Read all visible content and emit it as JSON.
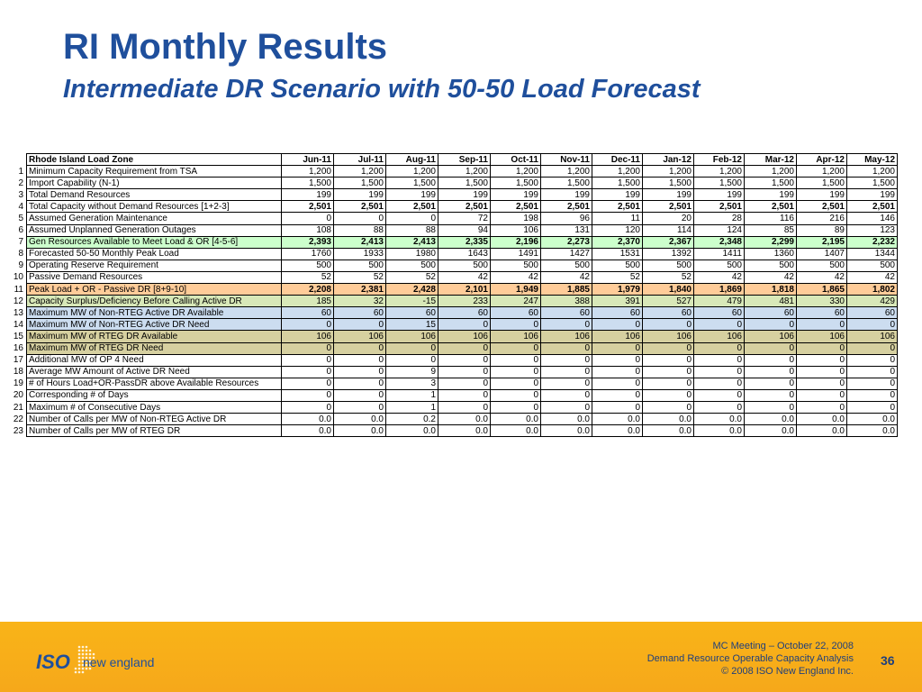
{
  "title": "RI Monthly Results",
  "subtitle": "Intermediate DR Scenario with 50-50 Load Forecast",
  "table": {
    "header_label": "Rhode Island Load Zone",
    "months": [
      "Jun-11",
      "Jul-11",
      "Aug-11",
      "Sep-11",
      "Oct-11",
      "Nov-11",
      "Dec-11",
      "Jan-12",
      "Feb-12",
      "Mar-12",
      "Apr-12",
      "May-12"
    ],
    "rows": [
      {
        "num": "1",
        "label": "Minimum Capacity Requirement from TSA",
        "bg": "",
        "bold": false,
        "values": [
          "1,200",
          "1,200",
          "1,200",
          "1,200",
          "1,200",
          "1,200",
          "1,200",
          "1,200",
          "1,200",
          "1,200",
          "1,200",
          "1,200"
        ]
      },
      {
        "num": "2",
        "label": "Import Capability (N-1)",
        "bg": "",
        "bold": false,
        "values": [
          "1,500",
          "1,500",
          "1,500",
          "1,500",
          "1,500",
          "1,500",
          "1,500",
          "1,500",
          "1,500",
          "1,500",
          "1,500",
          "1,500"
        ]
      },
      {
        "num": "3",
        "label": "Total Demand Resources",
        "bg": "",
        "bold": false,
        "values": [
          "199",
          "199",
          "199",
          "199",
          "199",
          "199",
          "199",
          "199",
          "199",
          "199",
          "199",
          "199"
        ]
      },
      {
        "num": "4",
        "label": "Total Capacity without Demand Resources [1+2-3]",
        "bg": "",
        "bold": true,
        "values": [
          "2,501",
          "2,501",
          "2,501",
          "2,501",
          "2,501",
          "2,501",
          "2,501",
          "2,501",
          "2,501",
          "2,501",
          "2,501",
          "2,501"
        ]
      },
      {
        "num": "5",
        "label": "Assumed Generation Maintenance",
        "bg": "",
        "bold": false,
        "values": [
          "0",
          "0",
          "0",
          "72",
          "198",
          "96",
          "11",
          "20",
          "28",
          "116",
          "216",
          "146"
        ]
      },
      {
        "num": "6",
        "label": "Assumed Unplanned Generation Outages",
        "bg": "",
        "bold": false,
        "values": [
          "108",
          "88",
          "88",
          "94",
          "106",
          "131",
          "120",
          "114",
          "124",
          "85",
          "89",
          "123"
        ]
      },
      {
        "num": "7",
        "label": "Gen Resources Available to Meet Load & OR [4-5-6]",
        "bg": "#ccffcc",
        "bold": true,
        "values": [
          "2,393",
          "2,413",
          "2,413",
          "2,335",
          "2,196",
          "2,273",
          "2,370",
          "2,367",
          "2,348",
          "2,299",
          "2,195",
          "2,232"
        ]
      },
      {
        "num": "8",
        "label": "Forecasted 50-50 Monthly Peak Load",
        "bg": "",
        "bold": false,
        "values": [
          "1760",
          "1933",
          "1980",
          "1643",
          "1491",
          "1427",
          "1531",
          "1392",
          "1411",
          "1360",
          "1407",
          "1344"
        ]
      },
      {
        "num": "9",
        "label": "Operating Reserve Requirement",
        "bg": "",
        "bold": false,
        "values": [
          "500",
          "500",
          "500",
          "500",
          "500",
          "500",
          "500",
          "500",
          "500",
          "500",
          "500",
          "500"
        ]
      },
      {
        "num": "10",
        "label": "Passive Demand Resources",
        "bg": "",
        "bold": false,
        "values": [
          "52",
          "52",
          "52",
          "42",
          "42",
          "42",
          "52",
          "52",
          "42",
          "42",
          "42",
          "42"
        ]
      },
      {
        "num": "11",
        "label": "Peak Load + OR - Passive DR [8+9-10]",
        "bg": "#ffcc99",
        "bold": true,
        "values": [
          "2,208",
          "2,381",
          "2,428",
          "2,101",
          "1,949",
          "1,885",
          "1,979",
          "1,840",
          "1,869",
          "1,818",
          "1,865",
          "1,802"
        ]
      },
      {
        "num": "12",
        "label": "Capacity Surplus/Deficiency Before Calling Active DR",
        "bg": "#d8e8b8",
        "bold": false,
        "values": [
          "185",
          "32",
          "-15",
          "233",
          "247",
          "388",
          "391",
          "527",
          "479",
          "481",
          "330",
          "429"
        ]
      },
      {
        "num": "13",
        "label": "Maximum MW of Non-RTEG Active DR Available",
        "bg": "#ccddf0",
        "bold": false,
        "values": [
          "60",
          "60",
          "60",
          "60",
          "60",
          "60",
          "60",
          "60",
          "60",
          "60",
          "60",
          "60"
        ]
      },
      {
        "num": "14",
        "label": "Maximum MW of Non-RTEG Active DR Need",
        "bg": "#ccddf0",
        "bold": false,
        "values": [
          "0",
          "0",
          "15",
          "0",
          "0",
          "0",
          "0",
          "0",
          "0",
          "0",
          "0",
          "0"
        ]
      },
      {
        "num": "15",
        "label": "Maximum MW of RTEG DR Available",
        "bg": "#d6d0a0",
        "bold": false,
        "values": [
          "106",
          "106",
          "106",
          "106",
          "106",
          "106",
          "106",
          "106",
          "106",
          "106",
          "106",
          "106"
        ]
      },
      {
        "num": "16",
        "label": "Maximum MW of RTEG DR Need",
        "bg": "#d6d0a0",
        "bold": false,
        "values": [
          "0",
          "0",
          "0",
          "0",
          "0",
          "0",
          "0",
          "0",
          "0",
          "0",
          "0",
          "0"
        ]
      },
      {
        "num": "17",
        "label": "Additional MW of OP 4 Need",
        "bg": "",
        "bold": false,
        "values": [
          "0",
          "0",
          "0",
          "0",
          "0",
          "0",
          "0",
          "0",
          "0",
          "0",
          "0",
          "0"
        ]
      },
      {
        "num": "18",
        "label": "Average MW Amount of Active DR Need",
        "bg": "",
        "bold": false,
        "values": [
          "0",
          "0",
          "9",
          "0",
          "0",
          "0",
          "0",
          "0",
          "0",
          "0",
          "0",
          "0"
        ]
      },
      {
        "num": "19",
        "label": "# of Hours Load+OR-PassDR above Available Resources",
        "bg": "",
        "bold": false,
        "values": [
          "0",
          "0",
          "3",
          "0",
          "0",
          "0",
          "0",
          "0",
          "0",
          "0",
          "0",
          "0"
        ]
      },
      {
        "num": "20",
        "label": "Corresponding # of Days",
        "bg": "",
        "bold": false,
        "values": [
          "0",
          "0",
          "1",
          "0",
          "0",
          "0",
          "0",
          "0",
          "0",
          "0",
          "0",
          "0"
        ]
      },
      {
        "num": "21",
        "label": "Maximum # of Consecutive Days",
        "bg": "",
        "bold": false,
        "values": [
          "0",
          "0",
          "1",
          "0",
          "0",
          "0",
          "0",
          "0",
          "0",
          "0",
          "0",
          "0"
        ]
      },
      {
        "num": "22",
        "label": "Number of Calls per MW of Non-RTEG Active DR",
        "bg": "",
        "bold": false,
        "values": [
          "0.0",
          "0.0",
          "0.2",
          "0.0",
          "0.0",
          "0.0",
          "0.0",
          "0.0",
          "0.0",
          "0.0",
          "0.0",
          "0.0"
        ]
      },
      {
        "num": "23",
        "label": "Number of Calls per MW of RTEG DR",
        "bg": "",
        "bold": false,
        "values": [
          "0.0",
          "0.0",
          "0.0",
          "0.0",
          "0.0",
          "0.0",
          "0.0",
          "0.0",
          "0.0",
          "0.0",
          "0.0",
          "0.0"
        ]
      }
    ]
  },
  "footer": {
    "logo_iso": "ISO",
    "logo_ne": "new england",
    "line1": "MC Meeting – October 22, 2008",
    "line2": "Demand Resource Operable Capacity Analysis",
    "line3": "© 2008 ISO New England Inc.",
    "page": "36"
  },
  "colors": {
    "title": "#1f4f9c",
    "footer_band": "#f9b418"
  }
}
